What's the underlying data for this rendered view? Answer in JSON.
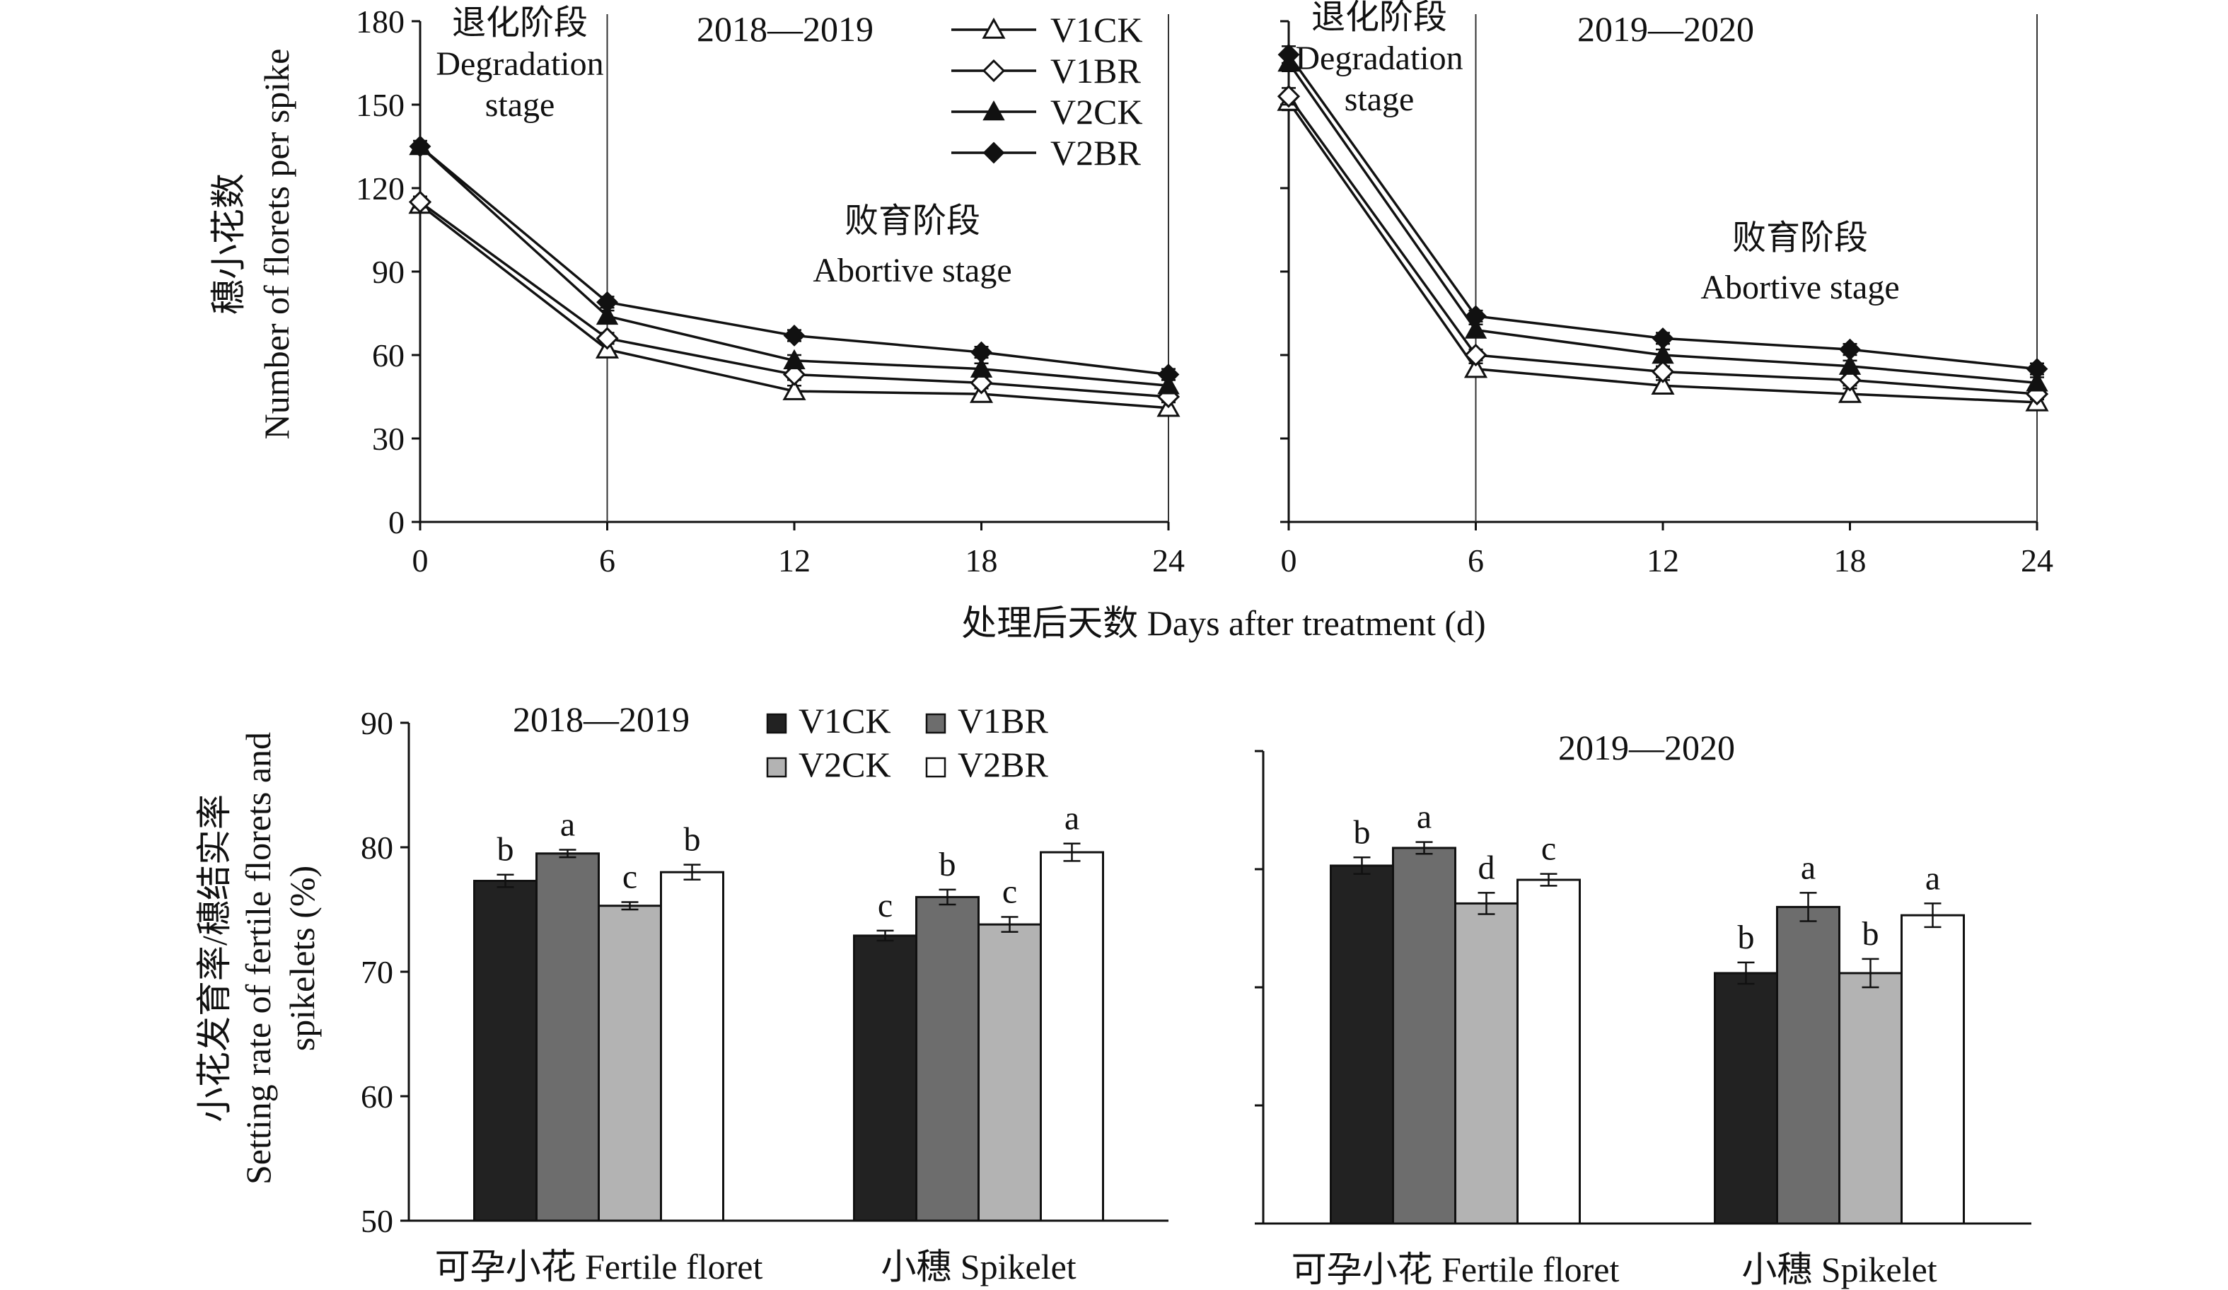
{
  "chart_data": [
    {
      "type": "line",
      "period": "2018—2019",
      "ylabel": [
        "穗小花数",
        "Number of florets per spike"
      ],
      "xlim": [
        0,
        24
      ],
      "ylim": [
        0,
        180
      ],
      "x_ticks": [
        "0",
        "6",
        "12",
        "18",
        "24"
      ],
      "y_ticks": [
        "0",
        "30",
        "60",
        "90",
        "120",
        "150",
        "180"
      ],
      "x": [
        0,
        6,
        12,
        18,
        24
      ],
      "series": [
        {
          "name": "V1CK",
          "values": [
            114,
            62,
            47,
            46,
            41
          ],
          "errors": [
            2,
            2,
            2,
            2,
            2
          ]
        },
        {
          "name": "V1BR",
          "values": [
            115,
            66,
            53,
            50,
            45
          ],
          "errors": [
            2,
            2,
            2,
            2,
            2
          ]
        },
        {
          "name": "V2CK",
          "values": [
            135,
            74,
            58,
            55,
            49
          ],
          "errors": [
            2,
            2,
            2,
            2,
            2
          ]
        },
        {
          "name": "V2BR",
          "values": [
            135,
            79,
            67,
            61,
            53
          ],
          "errors": [
            2,
            2,
            2,
            2,
            2
          ]
        }
      ],
      "stage_lines": [
        6,
        24
      ],
      "annotations": {
        "degradation": [
          "退化阶段",
          "Degradation",
          "stage"
        ],
        "abortive": [
          "败育阶段",
          "Abortive stage"
        ]
      },
      "legend": "top-right"
    },
    {
      "type": "line",
      "period": "2019—2020",
      "xlim": [
        0,
        24
      ],
      "ylim": [
        0,
        180
      ],
      "x_ticks": [
        "0",
        "6",
        "12",
        "18",
        "24"
      ],
      "x": [
        0,
        6,
        12,
        18,
        24
      ],
      "series": [
        {
          "name": "V1CK",
          "values": [
            151,
            55,
            49,
            46,
            43
          ],
          "errors": [
            3,
            2,
            2,
            2,
            2
          ]
        },
        {
          "name": "V1BR",
          "values": [
            153,
            60,
            54,
            51,
            46
          ],
          "errors": [
            3,
            2,
            2,
            2,
            2
          ]
        },
        {
          "name": "V2CK",
          "values": [
            165,
            69,
            60,
            56,
            50
          ],
          "errors": [
            3,
            2,
            2,
            2,
            2
          ]
        },
        {
          "name": "V2BR",
          "values": [
            168,
            74,
            66,
            62,
            55
          ],
          "errors": [
            3,
            2,
            2,
            2,
            2
          ]
        }
      ],
      "stage_lines": [
        6,
        24
      ],
      "annotations": {
        "degradation": [
          "退化阶段",
          "Degradation",
          "stage"
        ],
        "abortive": [
          "败育阶段",
          "Abortive stage"
        ]
      }
    },
    {
      "type": "bar",
      "period": "2018—2019",
      "ylabel": [
        "小花发育率/穗结实率",
        "Setting rate of fertile florets and",
        "spikelets (%)"
      ],
      "ylim": [
        50,
        90
      ],
      "y_ticks": [
        "50",
        "60",
        "70",
        "80",
        "90"
      ],
      "categories": [
        "可孕小花 Fertile floret",
        "小穗 Spikelet"
      ],
      "series": [
        {
          "name": "V1CK",
          "color": "#222222",
          "values": [
            77.3,
            72.9
          ],
          "errors": [
            0.5,
            0.4
          ],
          "letters": [
            "b",
            "c"
          ]
        },
        {
          "name": "V1BR",
          "color": "#6d6d6d",
          "values": [
            79.5,
            76.0
          ],
          "errors": [
            0.3,
            0.6
          ],
          "letters": [
            "a",
            "b"
          ]
        },
        {
          "name": "V2CK",
          "color": "#b3b3b3",
          "values": [
            75.3,
            73.8
          ],
          "errors": [
            0.3,
            0.6
          ],
          "letters": [
            "c",
            "c"
          ]
        },
        {
          "name": "V2BR",
          "color": "#ffffff",
          "values": [
            78.0,
            79.6
          ],
          "errors": [
            0.6,
            0.7
          ],
          "letters": [
            "b",
            "a"
          ]
        }
      ],
      "legend": "top-center"
    },
    {
      "type": "bar",
      "period": "2019—2020",
      "ylim": [
        50,
        90
      ],
      "categories": [
        "可孕小花 Fertile floret",
        "小穗 Spikelet"
      ],
      "series": [
        {
          "name": "V1CK",
          "color": "#222222",
          "values": [
            80.3,
            71.2
          ],
          "errors": [
            0.7,
            0.9
          ],
          "letters": [
            "b",
            "b"
          ]
        },
        {
          "name": "V1BR",
          "color": "#6d6d6d",
          "values": [
            81.8,
            76.8
          ],
          "errors": [
            0.5,
            1.2
          ],
          "letters": [
            "a",
            "a"
          ]
        },
        {
          "name": "V2CK",
          "color": "#b3b3b3",
          "values": [
            77.1,
            71.2
          ],
          "errors": [
            0.9,
            1.2
          ],
          "letters": [
            "d",
            "b"
          ]
        },
        {
          "name": "V2BR",
          "color": "#ffffff",
          "values": [
            79.1,
            76.1
          ],
          "errors": [
            0.5,
            1.0
          ],
          "letters": [
            "c",
            "a"
          ]
        }
      ]
    }
  ],
  "shared_xlabel": "处理后天数 Days after treatment (d)"
}
